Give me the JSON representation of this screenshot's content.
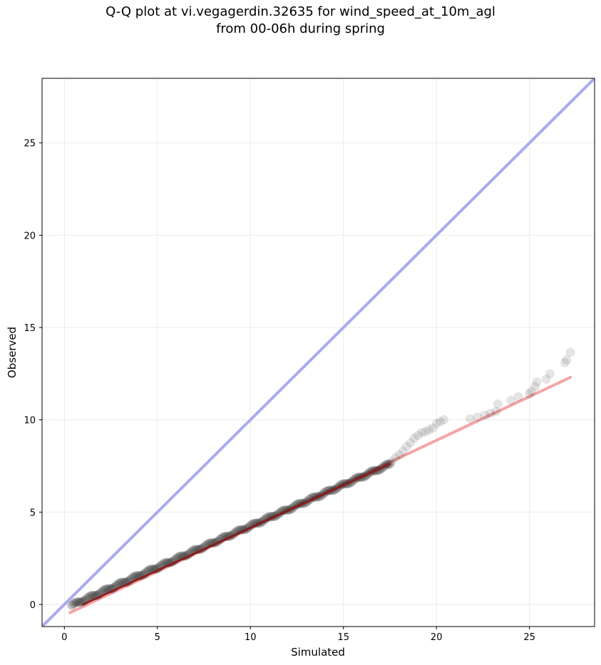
{
  "chart_data": {
    "type": "scatter",
    "title_line1": "Q-Q plot at vi.vegagerdin.32635 for wind_speed_at_10m_agl",
    "title_line2": "from 00-06h during spring",
    "xlabel": "Simulated",
    "ylabel": "Observed",
    "xlim": [
      -1.2,
      28.5
    ],
    "ylim": [
      -1.2,
      28.5
    ],
    "xticks": [
      0,
      5,
      10,
      15,
      20,
      25
    ],
    "yticks": [
      0,
      5,
      10,
      15,
      20,
      25
    ],
    "grid": true,
    "identity_line": {
      "color": "#aaaaee",
      "from": [
        -1.2,
        -1.2
      ],
      "to": [
        28.5,
        28.5
      ]
    },
    "fit_line": {
      "color": "#f4a0a0",
      "from": [
        0.3,
        -0.45
      ],
      "to": [
        27.2,
        12.3
      ]
    },
    "dense_segment": {
      "color": "#8b1a1a",
      "from": [
        1.0,
        0.0
      ],
      "to": [
        17.5,
        7.6
      ]
    },
    "points": {
      "color": "#000000",
      "dense_x": [
        0.4,
        17.5
      ],
      "dense_y": [
        -0.05,
        7.6
      ],
      "tail": [
        [
          17.6,
          7.75
        ],
        [
          17.8,
          7.95
        ],
        [
          18.0,
          8.1
        ],
        [
          18.2,
          8.3
        ],
        [
          18.4,
          8.55
        ],
        [
          18.6,
          8.75
        ],
        [
          18.8,
          9.0
        ],
        [
          19.0,
          9.15
        ],
        [
          19.2,
          9.3
        ],
        [
          19.4,
          9.35
        ],
        [
          19.6,
          9.45
        ],
        [
          19.8,
          9.55
        ],
        [
          20.0,
          9.8
        ],
        [
          20.2,
          9.9
        ],
        [
          20.4,
          10.0
        ],
        [
          21.8,
          10.05
        ],
        [
          22.2,
          10.15
        ],
        [
          22.6,
          10.25
        ],
        [
          22.9,
          10.35
        ],
        [
          23.2,
          10.45
        ],
        [
          23.3,
          10.85
        ],
        [
          24.0,
          11.05
        ],
        [
          24.4,
          11.25
        ],
        [
          25.0,
          11.4
        ],
        [
          25.1,
          11.55
        ],
        [
          25.3,
          11.8
        ],
        [
          25.4,
          12.05
        ],
        [
          25.9,
          12.2
        ],
        [
          26.1,
          12.5
        ],
        [
          26.9,
          13.1
        ],
        [
          27.0,
          13.25
        ],
        [
          27.2,
          13.65
        ]
      ]
    }
  }
}
